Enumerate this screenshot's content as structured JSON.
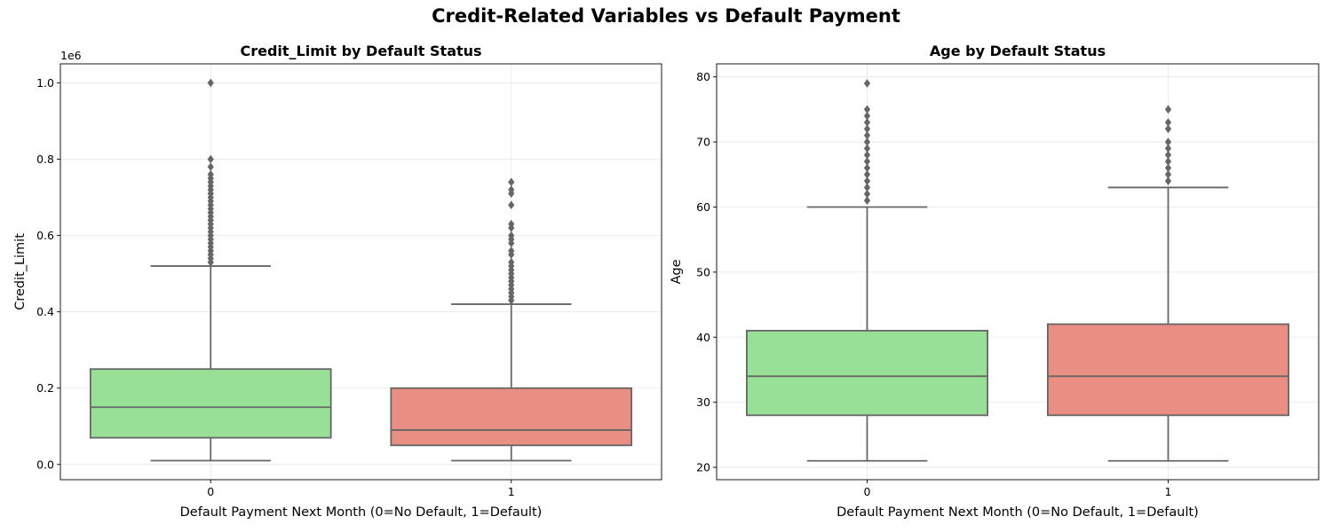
{
  "figure": {
    "title": "Credit-Related Variables vs Default Payment"
  },
  "chart_data": [
    {
      "type": "box",
      "title": "Credit_Limit by Default Status",
      "xlabel": "Default Payment Next Month (0=No Default, 1=Default)",
      "ylabel": "Credit_Limit",
      "offset_text": "1e6",
      "categories": [
        "0",
        "1"
      ],
      "ylim": [
        -0.04,
        1.05
      ],
      "yticks": [
        0.0,
        0.2,
        0.4,
        0.6,
        0.8,
        1.0
      ],
      "ytick_labels": [
        "0.0",
        "0.2",
        "0.4",
        "0.6",
        "0.8",
        "1.0"
      ],
      "grid": true,
      "boxes": [
        {
          "category": "0",
          "color": "#98e098",
          "whisker_low": 0.01,
          "q1": 0.07,
          "median": 0.15,
          "q3": 0.25,
          "whisker_high": 0.52,
          "outliers": [
            0.53,
            0.54,
            0.55,
            0.56,
            0.57,
            0.58,
            0.59,
            0.6,
            0.61,
            0.62,
            0.63,
            0.64,
            0.65,
            0.66,
            0.67,
            0.68,
            0.69,
            0.7,
            0.71,
            0.72,
            0.73,
            0.74,
            0.75,
            0.76,
            0.78,
            0.8,
            1.0
          ]
        },
        {
          "category": "1",
          "color": "#e88e82",
          "whisker_low": 0.01,
          "q1": 0.05,
          "median": 0.09,
          "q3": 0.2,
          "whisker_high": 0.42,
          "outliers": [
            0.43,
            0.44,
            0.45,
            0.46,
            0.47,
            0.48,
            0.49,
            0.5,
            0.51,
            0.52,
            0.53,
            0.55,
            0.56,
            0.58,
            0.59,
            0.6,
            0.62,
            0.63,
            0.68,
            0.71,
            0.72,
            0.74
          ]
        }
      ]
    },
    {
      "type": "box",
      "title": "Age by Default Status",
      "xlabel": "Default Payment Next Month (0=No Default, 1=Default)",
      "ylabel": "Age",
      "offset_text": "",
      "categories": [
        "0",
        "1"
      ],
      "ylim": [
        18.1,
        82
      ],
      "yticks": [
        20,
        30,
        40,
        50,
        60,
        70,
        80
      ],
      "ytick_labels": [
        "20",
        "30",
        "40",
        "50",
        "60",
        "70",
        "80"
      ],
      "grid": true,
      "boxes": [
        {
          "category": "0",
          "color": "#98e098",
          "whisker_low": 21,
          "q1": 28,
          "median": 34,
          "q3": 41,
          "whisker_high": 60,
          "outliers": [
            61,
            62,
            63,
            64,
            65,
            66,
            67,
            68,
            69,
            70,
            71,
            72,
            73,
            74,
            75,
            79
          ]
        },
        {
          "category": "1",
          "color": "#e88e82",
          "whisker_low": 21,
          "q1": 28,
          "median": 34,
          "q3": 42,
          "whisker_high": 63,
          "outliers": [
            64,
            65,
            66,
            67,
            68,
            69,
            70,
            72,
            73,
            75
          ]
        }
      ]
    }
  ]
}
